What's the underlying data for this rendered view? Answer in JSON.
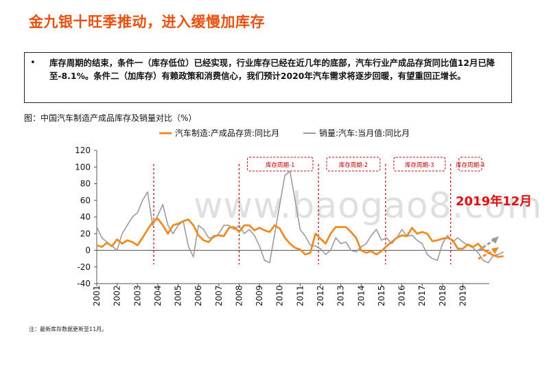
{
  "page": {
    "title": "金九银十旺季推动，进入缓慢加库存",
    "bullet": "库存周期的结束，条件一（库存低位）已经实现，行业库存已经在近几年的底部，汽车行业产成品存货同比值12月已降至-8.1%。条件二（加库存）有赖政策和消费信心，我们预计2020年汽车需求将逐步回暖，有望重回正增长。",
    "bullet_marker": "•",
    "figure_caption": "图：中国汽车制造产成品库存及销量对比（%）",
    "watermark": "www.baogao8.com",
    "note": "注：最新库存数据更新至11月。",
    "annotation": "2019年12月",
    "colors": {
      "title": "#e8500f",
      "inventory": "#f08a24",
      "sales": "#9a9a9a",
      "divider": "#c00000",
      "annotation": "#e01010"
    }
  },
  "chart_data": {
    "type": "line",
    "x_start": 2001.0,
    "x_step": 0.25,
    "xlim": [
      2001,
      2020.3
    ],
    "ylim": [
      -40,
      120
    ],
    "yticks": [
      -40,
      -20,
      0,
      20,
      40,
      60,
      80,
      100,
      120
    ],
    "xticks": [
      "2001",
      "2002",
      "2003",
      "2004",
      "2005",
      "2006",
      "2007",
      "2008",
      "2009",
      "2010",
      "2011",
      "2012",
      "2013",
      "2014",
      "2015",
      "2016",
      "2017",
      "2018",
      "2019"
    ],
    "legend_position": "top",
    "grid": false,
    "series": [
      {
        "name": "汽车制造:产成品存货:同比月",
        "values": [
          6,
          4,
          9,
          5,
          13,
          8,
          12,
          10,
          6,
          15,
          25,
          34,
          38,
          30,
          20,
          30,
          32,
          35,
          37,
          30,
          18,
          12,
          10,
          17,
          18,
          17,
          27,
          28,
          22,
          30,
          30,
          24,
          27,
          24,
          22,
          30,
          26,
          15,
          8,
          3,
          1,
          -5,
          -3,
          20,
          14,
          8,
          20,
          28,
          28,
          28,
          22,
          15,
          0,
          -3,
          -1,
          -5,
          -1,
          5,
          10,
          15,
          18,
          17,
          27,
          20,
          22,
          20,
          11,
          12,
          14,
          15,
          12,
          2,
          2,
          7,
          4,
          8,
          1,
          -3,
          -6,
          -8,
          -7
        ]
      },
      {
        "name": "销量:汽车:当月值:同比月",
        "values": [
          28,
          15,
          10,
          5,
          0,
          20,
          30,
          40,
          45,
          60,
          70,
          30,
          42,
          55,
          30,
          20,
          30,
          35,
          5,
          -8,
          30,
          25,
          15,
          15,
          20,
          30,
          30,
          25,
          30,
          20,
          25,
          18,
          5,
          -12,
          -15,
          20,
          55,
          90,
          95,
          60,
          25,
          17,
          6,
          5,
          2,
          -5,
          0,
          15,
          8,
          10,
          0,
          -2,
          4,
          8,
          18,
          25,
          12,
          15,
          8,
          15,
          25,
          17,
          18,
          12,
          8,
          -5,
          -10,
          -12,
          8,
          18,
          10,
          15,
          10,
          6,
          3,
          -3,
          -12,
          -15,
          -6,
          -5,
          -2
        ]
      }
    ],
    "cycles": [
      {
        "label": "库存周期-1",
        "start": 2008.0,
        "end": 2011.9
      },
      {
        "label": "库存周期-2",
        "start": 2011.9,
        "end": 2015.2
      },
      {
        "label": "库存周期-3",
        "start": 2015.2,
        "end": 2018.4
      },
      {
        "label": "库存周期-4",
        "start": 2018.4,
        "end": 2020.2
      }
    ],
    "dividers": [
      2003.8,
      2008.0,
      2011.9,
      2015.2,
      2018.4
    ]
  }
}
